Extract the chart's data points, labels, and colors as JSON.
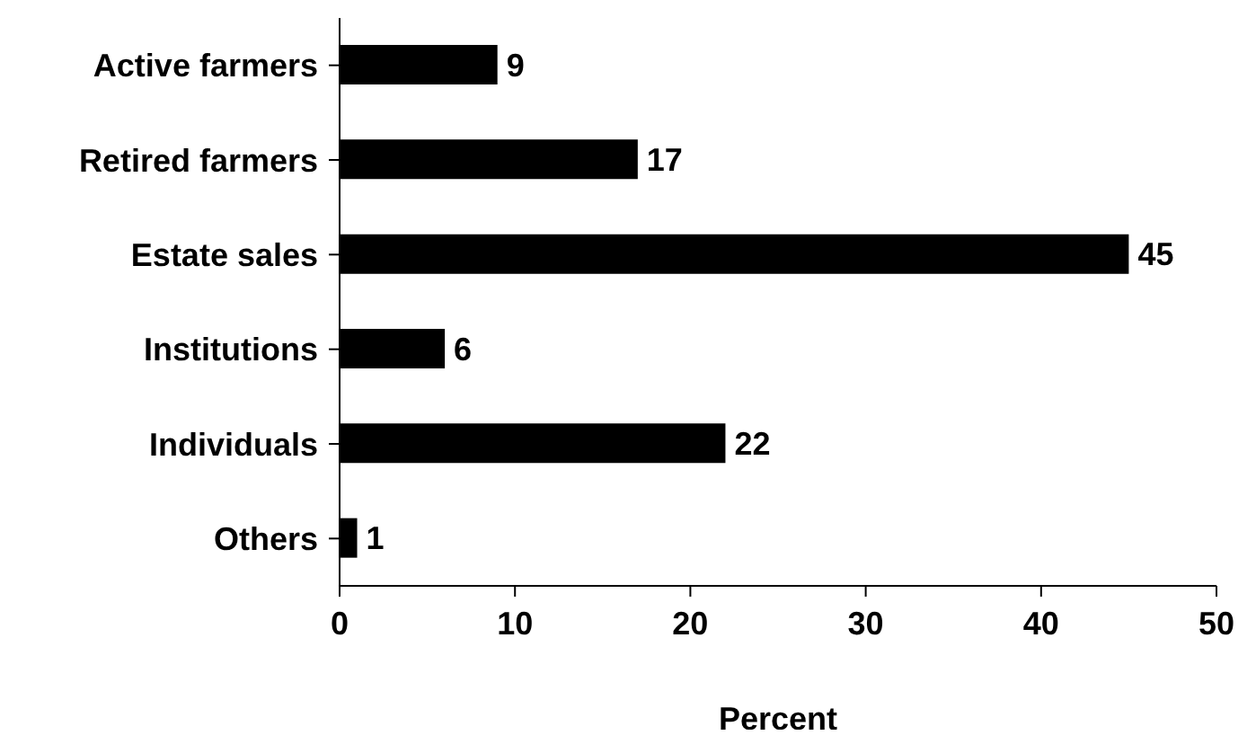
{
  "chart_data": {
    "type": "bar",
    "orientation": "horizontal",
    "xlabel": "Percent",
    "categories": [
      "Active farmers",
      "Retired farmers",
      "Estate sales",
      "Institutions",
      "Individuals",
      "Others"
    ],
    "values": [
      9,
      17,
      45,
      6,
      22,
      1
    ],
    "color": "#000000",
    "xlim": [
      0,
      50
    ],
    "xticks": [
      0,
      10,
      20,
      30,
      40,
      50
    ],
    "data_labels": true,
    "grid": false,
    "legend": false
  }
}
